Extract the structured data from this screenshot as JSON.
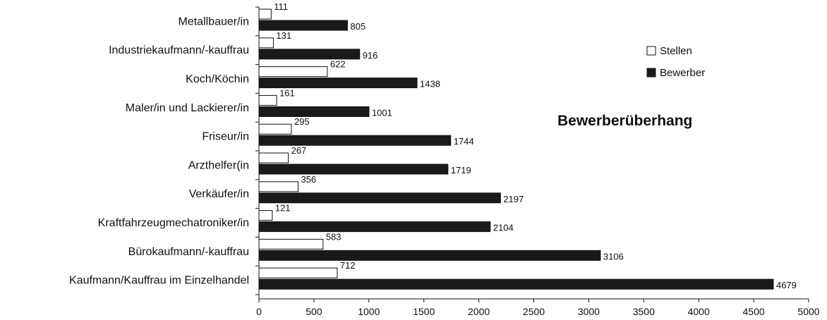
{
  "chart_data": {
    "type": "bar",
    "orientation": "horizontal",
    "title": "Bewerberüberhang",
    "categories": [
      "Metallbauer/in",
      "Industriekaufmann/-kauffrau",
      "Koch/Köchin",
      "Maler/in und Lackierer/in",
      "Friseur/in",
      "Arzthelfer(in",
      "Verkäufer/in",
      "Kraftfahrzeugmechatroniker/in",
      "Bürokaufmann/-kauffrau",
      "Kaufmann/Kauffrau im Einzelhandel"
    ],
    "series": [
      {
        "name": "Stellen",
        "color": "#ffffff",
        "values": [
          111,
          131,
          622,
          161,
          295,
          267,
          356,
          121,
          583,
          712
        ]
      },
      {
        "name": "Bewerber",
        "color": "#1a1a1a",
        "values": [
          805,
          916,
          1438,
          1001,
          1744,
          1719,
          2197,
          2104,
          3106,
          4679
        ]
      }
    ],
    "xlim": [
      0,
      5000
    ],
    "xticks": [
      0,
      500,
      1000,
      1500,
      2000,
      2500,
      3000,
      3500,
      4000,
      4500,
      5000
    ],
    "xlabel": "",
    "ylabel": "",
    "grid": false,
    "legend_position": "top-right"
  }
}
